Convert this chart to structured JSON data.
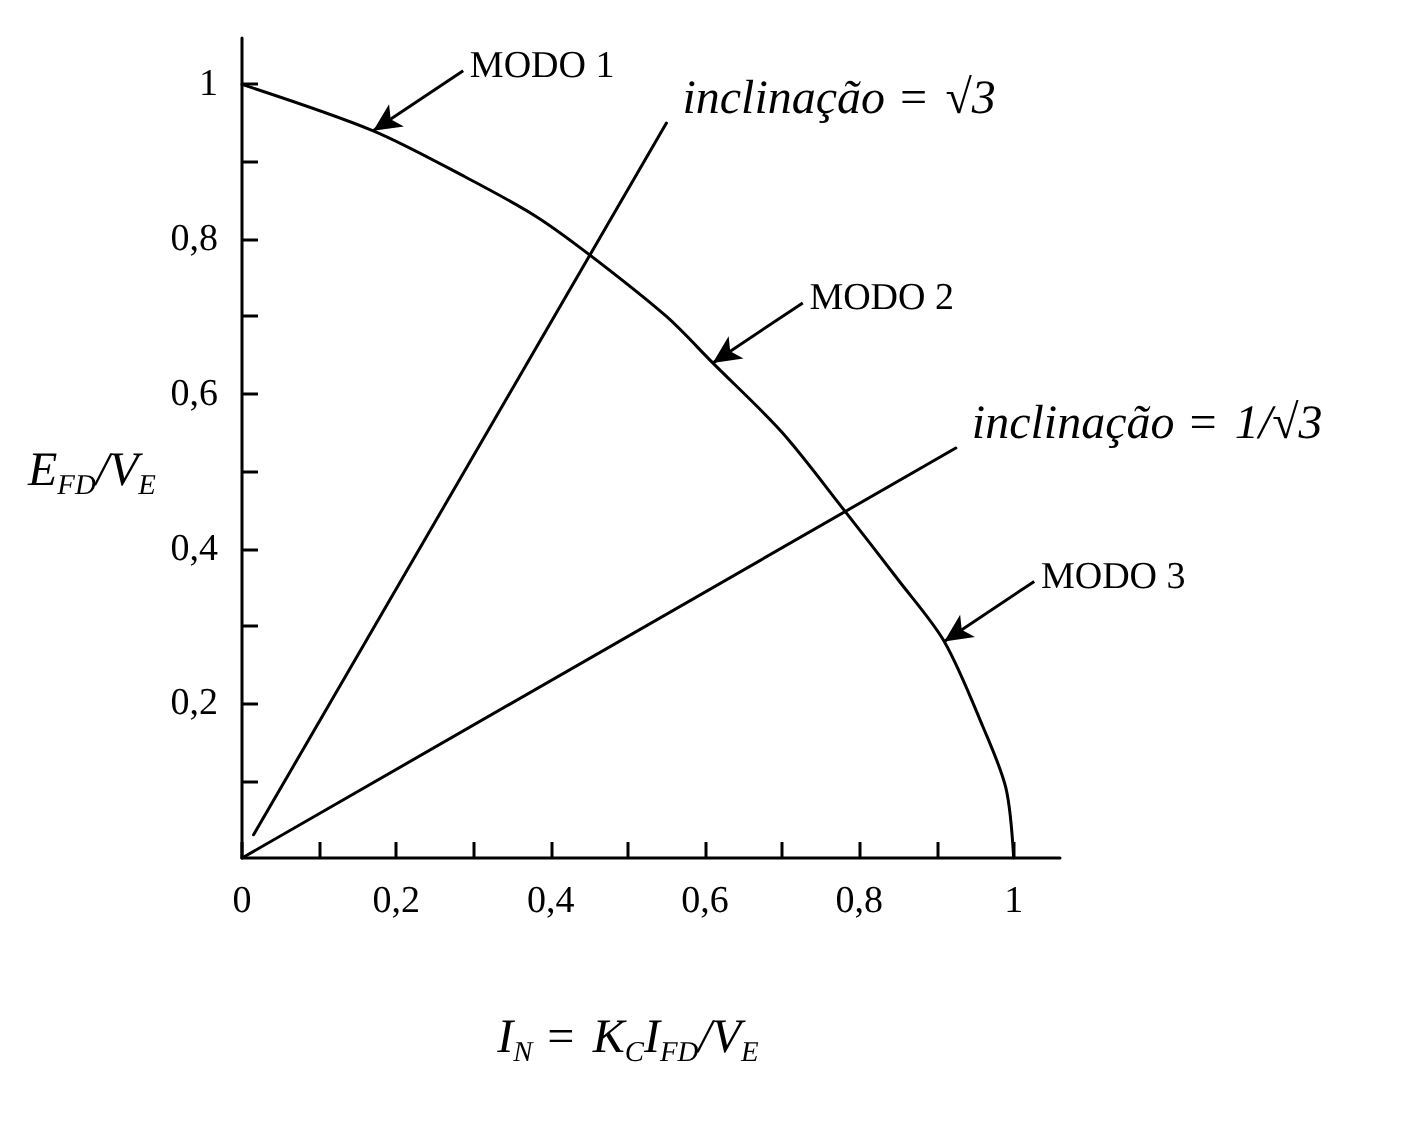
{
  "chart_data": {
    "type": "line",
    "xlabel": "I$_{N}$ = K$_{C}$I$_{FD}$/V$_{E}$",
    "ylabel": "E$_{FD}$/V$_{E}$",
    "xlim": [
      0,
      1.06
    ],
    "ylim": [
      0,
      1.06
    ],
    "xticks": [
      0,
      {
        "value": 0.1,
        "label": null
      },
      {
        "value": 0.2,
        "label": "0,2"
      },
      {
        "value": 0.3,
        "label": null
      },
      {
        "value": 0.4,
        "label": "0,4"
      },
      {
        "value": 0.5,
        "label": null
      },
      {
        "value": 0.6,
        "label": "0,6"
      },
      {
        "value": 0.7,
        "label": null
      },
      {
        "value": 0.8,
        "label": "0,8"
      },
      {
        "value": 0.9,
        "label": null
      },
      1
    ],
    "yticks": [
      {
        "value": 0.1,
        "label": null
      },
      {
        "value": 0.2,
        "label": "0,2"
      },
      {
        "value": 0.3,
        "label": null
      },
      {
        "value": 0.4,
        "label": "0,4"
      },
      {
        "value": 0.5,
        "label": null
      },
      {
        "value": 0.6,
        "label": "0,6"
      },
      {
        "value": 0.7,
        "label": null
      },
      {
        "value": 0.8,
        "label": "0,8"
      },
      {
        "value": 0.9,
        "label": null
      },
      1
    ],
    "grid": false,
    "marker": "none",
    "line_style": "solid",
    "series": [
      {
        "color": "#000000",
        "x": [
          0,
          0.17,
          0.29,
          0.38,
          0.45,
          0.55,
          0.61,
          0.7,
          0.78,
          0.85,
          0.91,
          0.96,
          0.99,
          1
        ],
        "values": [
          1,
          0.94,
          0.88,
          0.83,
          0.78,
          0.7,
          0.64,
          0.55,
          0.45,
          0.36,
          0.28,
          0.17,
          0.09,
          0
        ]
      },
      {
        "color": "#000000",
        "x": [
          0.015,
          0.55
        ],
        "values": [
          0.03,
          0.95
        ]
      },
      {
        "color": "#000000",
        "x": [
          0,
          0.925
        ],
        "values": [
          0,
          0.53
        ]
      }
    ],
    "annotations": [
      {
        "text": "MODO 1",
        "x": 0.17,
        "y": 0.94
      },
      {
        "text": "MODO 2",
        "x": 0.61,
        "y": 0.64
      },
      {
        "text": "MODO 3",
        "x": 0.91,
        "y": 0.28
      },
      {
        "text": "inclinação = √3",
        "x": 0.55,
        "y": 0.95
      },
      {
        "text": "inclinação = 1/√3",
        "x": 0.925,
        "y": 0.53
      }
    ]
  }
}
